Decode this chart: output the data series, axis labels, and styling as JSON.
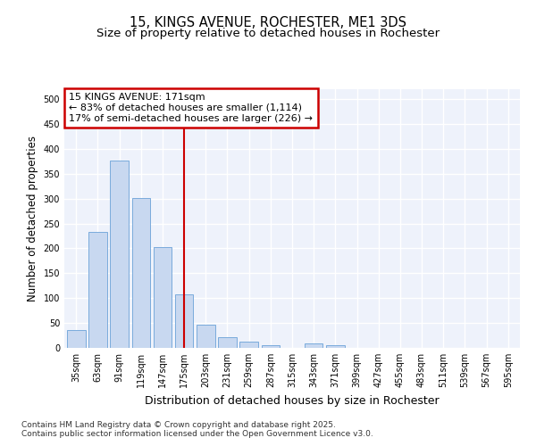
{
  "title": "15, KINGS AVENUE, ROCHESTER, ME1 3DS",
  "subtitle": "Size of property relative to detached houses in Rochester",
  "xlabel": "Distribution of detached houses by size in Rochester",
  "ylabel": "Number of detached properties",
  "bar_color": "#c8d8f0",
  "bar_edge_color": "#7aabdc",
  "bg_color": "#eef2fb",
  "grid_color": "#ffffff",
  "vline_x": 5,
  "vline_color": "#cc0000",
  "annotation_text": "15 KINGS AVENUE: 171sqm\n← 83% of detached houses are smaller (1,114)\n17% of semi-detached houses are larger (226) →",
  "annotation_box_color": "#ffffff",
  "annotation_box_edge": "#cc0000",
  "categories": [
    "35sqm",
    "63sqm",
    "91sqm",
    "119sqm",
    "147sqm",
    "175sqm",
    "203sqm",
    "231sqm",
    "259sqm",
    "287sqm",
    "315sqm",
    "343sqm",
    "371sqm",
    "399sqm",
    "427sqm",
    "455sqm",
    "483sqm",
    "511sqm",
    "539sqm",
    "567sqm",
    "595sqm"
  ],
  "values": [
    35,
    233,
    377,
    302,
    202,
    107,
    47,
    21,
    13,
    5,
    0,
    9,
    6,
    0,
    0,
    0,
    0,
    0,
    0,
    0,
    0
  ],
  "ylim": [
    0,
    520
  ],
  "yticks": [
    0,
    50,
    100,
    150,
    200,
    250,
    300,
    350,
    400,
    450,
    500
  ],
  "footer_line1": "Contains HM Land Registry data © Crown copyright and database right 2025.",
  "footer_line2": "Contains public sector information licensed under the Open Government Licence v3.0.",
  "title_fontsize": 10.5,
  "subtitle_fontsize": 9.5,
  "tick_fontsize": 7,
  "ylabel_fontsize": 8.5,
  "xlabel_fontsize": 9,
  "annotation_fontsize": 8,
  "footer_fontsize": 6.5
}
